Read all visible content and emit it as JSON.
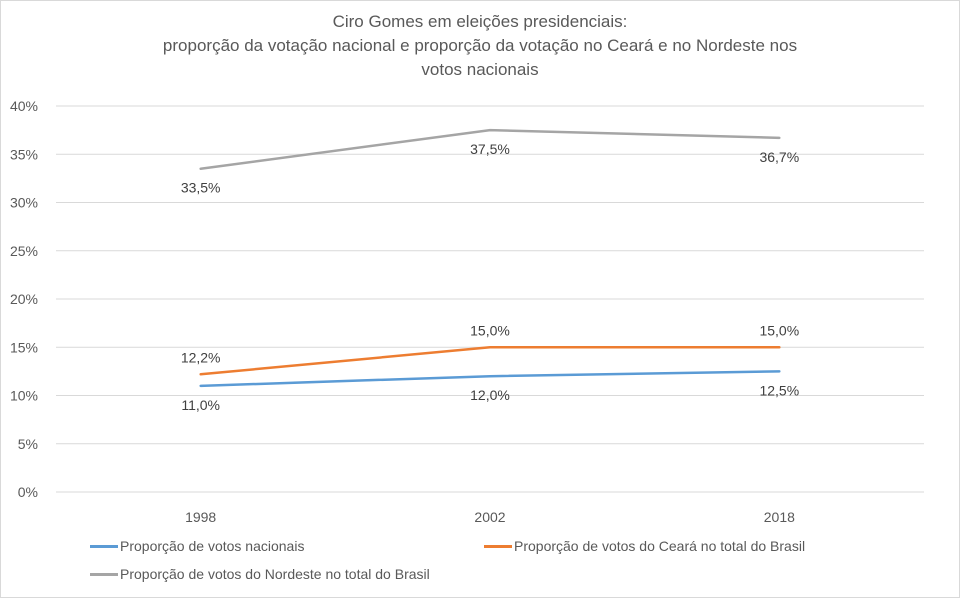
{
  "chart_data": {
    "type": "line",
    "title": "Ciro Gomes em eleições presidenciais:",
    "subtitle_lines": [
      "proporção da votação nacional e proporção da votação no Ceará e no Nordeste nos",
      "votos nacionais"
    ],
    "xlabel": "",
    "ylabel": "",
    "categories": [
      "1998",
      "2002",
      "2018"
    ],
    "y_ticks": [
      "0%",
      "5%",
      "10%",
      "15%",
      "20%",
      "25%",
      "30%",
      "35%",
      "40%"
    ],
    "ylim": [
      0,
      40
    ],
    "grid": true,
    "legend_position": "bottom",
    "series": [
      {
        "name": "Proporção de votos nacionais",
        "color": "#5b9bd5",
        "values": [
          11.0,
          12.0,
          12.5
        ],
        "labels": [
          "11,0%",
          "12,0%",
          "12,5%"
        ],
        "label_position": "below"
      },
      {
        "name": "Proporção de votos do Ceará no total do Brasil",
        "color": "#ed7d31",
        "values": [
          12.2,
          15.0,
          15.0
        ],
        "labels": [
          "12,2%",
          "15,0%",
          "15,0%"
        ],
        "label_position": "above"
      },
      {
        "name": "Proporção de votos do Nordeste no total do Brasil",
        "color": "#a5a5a5",
        "values": [
          33.5,
          37.5,
          36.7
        ],
        "labels": [
          "33,5%",
          "37,5%",
          "36,7%"
        ],
        "label_position": "below"
      }
    ]
  }
}
